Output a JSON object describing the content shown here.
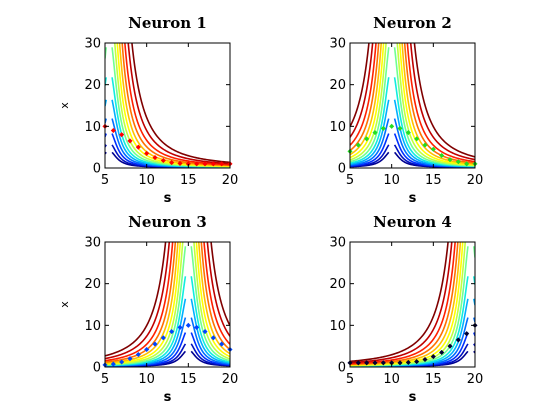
{
  "chart_data": [
    {
      "type": "contour",
      "title": "Neuron 1",
      "xlabel": "s",
      "ylabel": "x",
      "xlim": [
        5,
        20
      ],
      "ylim": [
        0,
        30
      ],
      "xticks": [
        "5",
        "10",
        "15",
        "20"
      ],
      "yticks": [
        "0",
        "10",
        "20",
        "30"
      ],
      "center": 5.5,
      "dots_color": "#ff0000",
      "dots": [
        [
          5,
          10
        ],
        [
          6,
          9
        ],
        [
          7,
          8
        ],
        [
          8,
          6.5
        ],
        [
          9,
          5
        ],
        [
          10,
          3.5
        ],
        [
          11,
          2.5
        ],
        [
          12,
          1.8
        ],
        [
          13,
          1.3
        ],
        [
          14,
          1.1
        ],
        [
          15,
          1
        ],
        [
          16,
          1
        ],
        [
          17,
          1
        ],
        [
          18,
          1
        ],
        [
          19,
          1
        ],
        [
          20,
          1
        ]
      ]
    },
    {
      "type": "contour",
      "title": "Neuron 2",
      "xlabel": "s",
      "ylabel": "",
      "xlim": [
        5,
        20
      ],
      "ylim": [
        0,
        30
      ],
      "xticks": [
        "5",
        "10",
        "15",
        "20"
      ],
      "yticks": [
        "0",
        "10",
        "20",
        "30"
      ],
      "center": 10,
      "dots_color": "#22dd22",
      "dots": [
        [
          5,
          4
        ],
        [
          6,
          5.5
        ],
        [
          7,
          7
        ],
        [
          8,
          8.5
        ],
        [
          9,
          9.5
        ],
        [
          10,
          10
        ],
        [
          11,
          9.5
        ],
        [
          12,
          8.5
        ],
        [
          13,
          7
        ],
        [
          14,
          5.5
        ],
        [
          15,
          4.5
        ],
        [
          16,
          3
        ],
        [
          17,
          2
        ],
        [
          18,
          1.5
        ],
        [
          19,
          1
        ],
        [
          20,
          1
        ]
      ]
    },
    {
      "type": "contour",
      "title": "Neuron 3",
      "xlabel": "s",
      "ylabel": "x",
      "xlim": [
        5,
        20
      ],
      "ylim": [
        0,
        30
      ],
      "xticks": [
        "5",
        "10",
        "15",
        "20"
      ],
      "yticks": [
        "0",
        "10",
        "20",
        "30"
      ],
      "center": 15,
      "dots_color": "#0044ff",
      "dots": [
        [
          5,
          0.5
        ],
        [
          6,
          0.7
        ],
        [
          7,
          1.2
        ],
        [
          8,
          2
        ],
        [
          9,
          3
        ],
        [
          10,
          4.2
        ],
        [
          11,
          5.5
        ],
        [
          12,
          7
        ],
        [
          13,
          8.5
        ],
        [
          14,
          9.5
        ],
        [
          15,
          10
        ],
        [
          16,
          9.5
        ],
        [
          17,
          8.5
        ],
        [
          18,
          7
        ],
        [
          19,
          5.5
        ],
        [
          20,
          4.2
        ]
      ]
    },
    {
      "type": "contour",
      "title": "Neuron 4",
      "xlabel": "s",
      "ylabel": "",
      "xlim": [
        5,
        20
      ],
      "ylim": [
        0,
        30
      ],
      "xticks": [
        "5",
        "10",
        "15",
        "20"
      ],
      "yticks": [
        "0",
        "10",
        "20",
        "30"
      ],
      "center": 19.5,
      "dots_color": "#000033",
      "dots": [
        [
          5,
          1
        ],
        [
          6,
          1
        ],
        [
          7,
          1
        ],
        [
          8,
          1
        ],
        [
          9,
          1
        ],
        [
          10,
          1
        ],
        [
          11,
          1
        ],
        [
          12,
          1.1
        ],
        [
          13,
          1.3
        ],
        [
          14,
          1.8
        ],
        [
          15,
          2.5
        ],
        [
          16,
          3.5
        ],
        [
          17,
          5
        ],
        [
          18,
          6.5
        ],
        [
          19,
          8
        ],
        [
          20,
          10
        ]
      ]
    }
  ]
}
